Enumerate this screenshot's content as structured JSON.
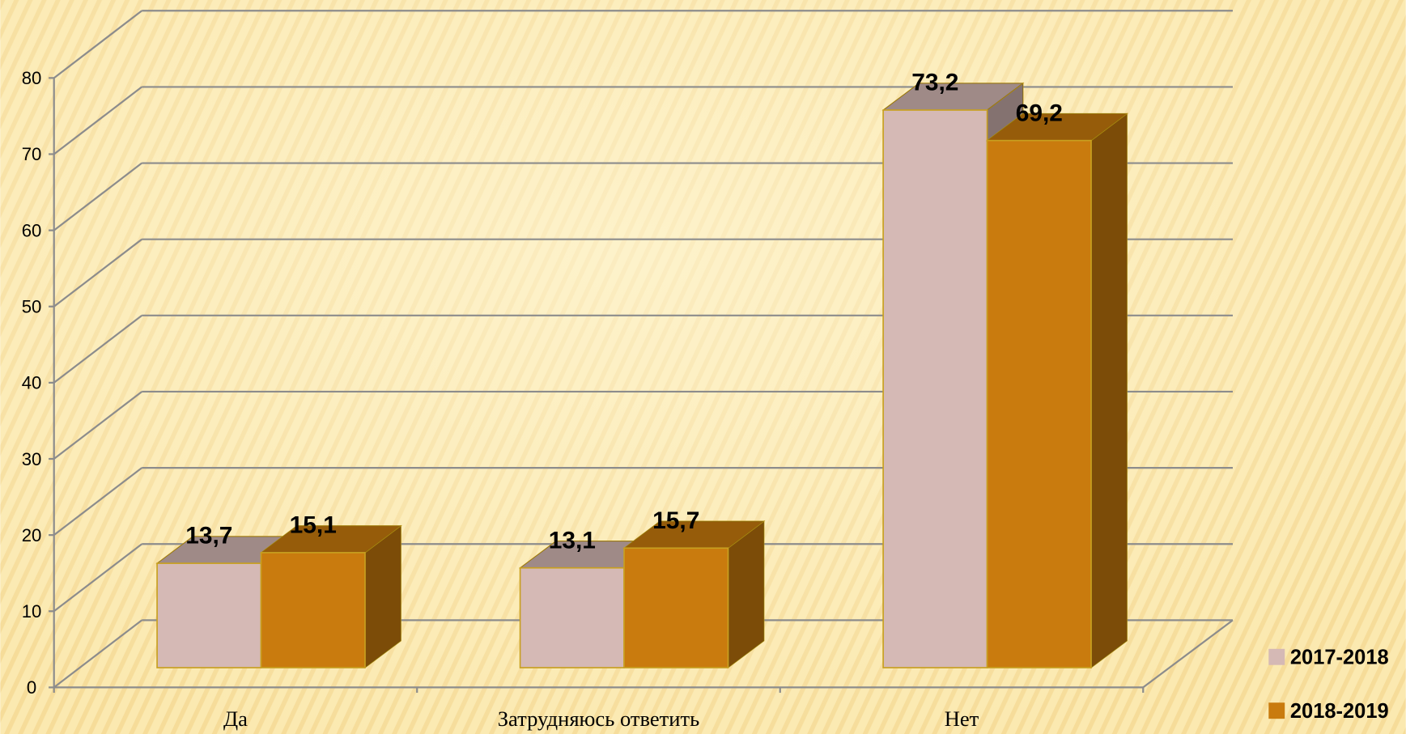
{
  "chart_data": {
    "type": "bar3d",
    "categories": [
      "Да",
      "Затрудняюсь ответить",
      "Нет"
    ],
    "series": [
      {
        "name": "2017-2018",
        "color": "#d5b9b5",
        "values": [
          13.7,
          13.1,
          73.2
        ],
        "value_labels": [
          "13,7",
          "13,1",
          "73,2"
        ]
      },
      {
        "name": "2018-2019",
        "color": "#c97b0e",
        "values": [
          15.1,
          15.7,
          69.2
        ],
        "value_labels": [
          "15,1",
          "15,7",
          "69,2"
        ]
      }
    ],
    "ylim": [
      0,
      80
    ],
    "yticks": [
      0,
      10,
      20,
      30,
      40,
      50,
      60,
      70,
      80
    ],
    "grid": true,
    "legend": "right"
  }
}
